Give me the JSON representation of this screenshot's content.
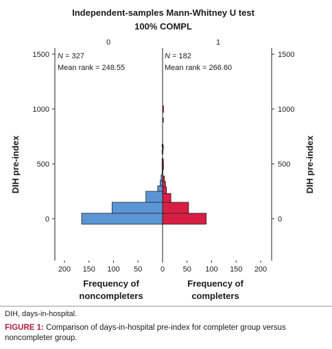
{
  "chart_data": {
    "type": "bar",
    "title": "Independent-samples Mann-Whitney U test",
    "subtitle": "100% COMPL",
    "ylabel": "DIH pre-index",
    "ylim": [
      -270,
      1530
    ],
    "y_ticks": [
      "0",
      "500",
      "1000",
      "1500"
    ],
    "x_ticks": [
      "200",
      "150",
      "100",
      "50",
      "0",
      "50",
      "100",
      "150",
      "200"
    ],
    "series": [
      {
        "name": "0",
        "color": "#5a96d6",
        "stat_n_label": "N",
        "stat_n_value": " = 327",
        "stat_rank": "Mean rank = 248.55",
        "xlabel_line1": "Frequency of",
        "xlabel_line2": "noncompleters",
        "bins": [
          {
            "y0": -50,
            "y1": 50,
            "count": 165
          },
          {
            "y0": 50,
            "y1": 150,
            "count": 103
          },
          {
            "y0": 150,
            "y1": 250,
            "count": 34
          },
          {
            "y0": 250,
            "y1": 300,
            "count": 10
          },
          {
            "y0": 300,
            "y1": 350,
            "count": 5
          },
          {
            "y0": 350,
            "y1": 400,
            "count": 3
          },
          {
            "y0": 400,
            "y1": 450,
            "count": 1
          },
          {
            "y0": 450,
            "y1": 500,
            "count": 1
          },
          {
            "y0": 500,
            "y1": 550,
            "count": 1
          },
          {
            "y0": 590,
            "y1": 630,
            "count": 1
          },
          {
            "y0": 650,
            "y1": 680,
            "count": 1
          }
        ]
      },
      {
        "name": "1",
        "color": "#d81e45",
        "stat_n_label": "N",
        "stat_n_value": " = 182",
        "stat_rank": "Mean rank = 266.60",
        "xlabel_line1": "Frequency of",
        "xlabel_line2": "completers",
        "bins": [
          {
            "y0": -50,
            "y1": 50,
            "count": 89
          },
          {
            "y0": 50,
            "y1": 150,
            "count": 53
          },
          {
            "y0": 150,
            "y1": 230,
            "count": 17
          },
          {
            "y0": 230,
            "y1": 290,
            "count": 8
          },
          {
            "y0": 290,
            "y1": 340,
            "count": 6
          },
          {
            "y0": 340,
            "y1": 390,
            "count": 4
          },
          {
            "y0": 450,
            "y1": 500,
            "count": 2
          },
          {
            "y0": 500,
            "y1": 540,
            "count": 1
          },
          {
            "y0": 630,
            "y1": 670,
            "count": 1
          },
          {
            "y0": 880,
            "y1": 920,
            "count": 1
          },
          {
            "y0": 970,
            "y1": 1030,
            "count": 2
          }
        ]
      }
    ],
    "xlim_each_side": [
      0,
      200
    ]
  },
  "abbreviation": "DIH, days-in-hospital.",
  "figure_caption": {
    "label": "FIGURE 1:",
    "text": " Comparison of days-in-hospital pre-index for completer group versus noncompleter group."
  }
}
